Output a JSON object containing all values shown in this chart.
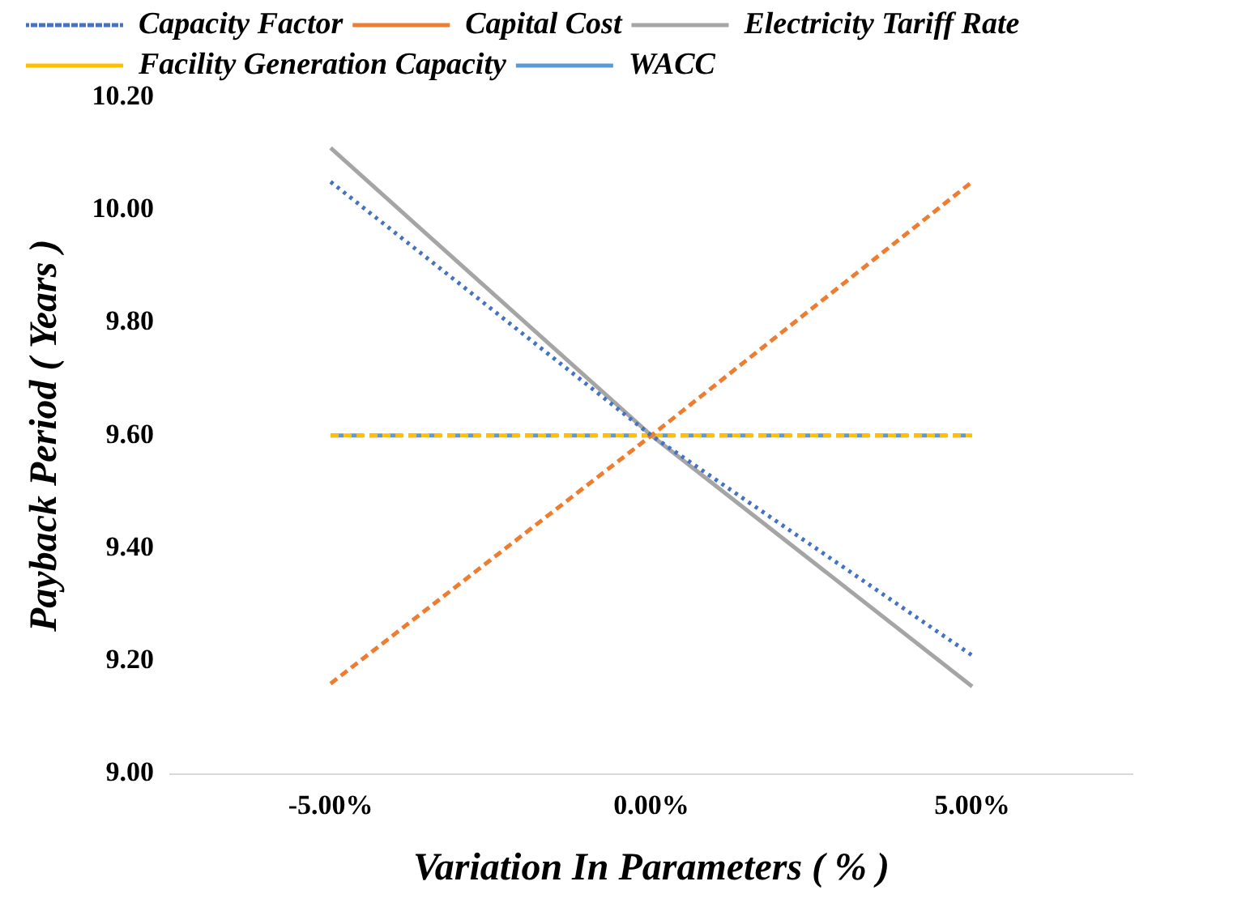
{
  "chart_data": {
    "type": "line",
    "xlabel": "Variation In Parameters ( % )",
    "ylabel": "Payback Period ( Years )",
    "categories": [
      "-5.00%",
      "0.00%",
      "5.00%"
    ],
    "series": [
      {
        "name": "Capacity Factor",
        "color": "#4472c4",
        "line_style": "dotted",
        "values": [
          10.05,
          9.6,
          9.21
        ]
      },
      {
        "name": "Capital Cost",
        "color": "#ed7d31",
        "line_style": "dashed",
        "values": [
          9.16,
          9.6,
          10.05
        ]
      },
      {
        "name": "Electricity Tariff Rate",
        "color": "#a5a5a5",
        "line_style": "solid",
        "values": [
          10.11,
          9.6,
          9.155
        ]
      },
      {
        "name": "Facility Generation Capacity",
        "color": "#ffc000",
        "line_style": "dashed",
        "values": [
          9.6,
          9.6,
          9.6
        ]
      },
      {
        "name": "WACC",
        "color": "#5b9bd5",
        "line_style": "dashed",
        "values": [
          9.6,
          9.6,
          9.6
        ]
      }
    ],
    "ylim": [
      9.0,
      10.2
    ],
    "yticks": [
      {
        "value": 9.0,
        "label": "9.00"
      },
      {
        "value": 9.2,
        "label": "9.20"
      },
      {
        "value": 9.4,
        "label": "9.40"
      },
      {
        "value": 9.6,
        "label": "9.60"
      },
      {
        "value": 9.8,
        "label": "9.80"
      },
      {
        "value": 10.0,
        "label": "10.00"
      },
      {
        "value": 10.2,
        "label": "10.20"
      }
    ],
    "grid": false,
    "legend": "top",
    "marker": "none"
  }
}
